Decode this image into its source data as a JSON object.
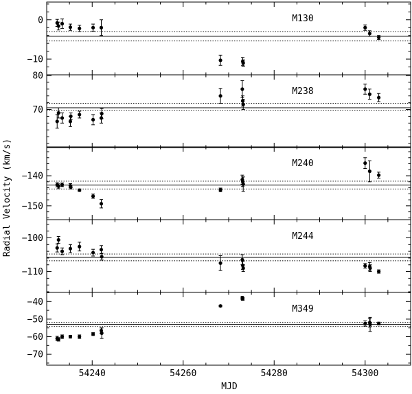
{
  "chart_data": {
    "type": "scatter",
    "xlabel": "MJD",
    "ylabel": "Radial Velocity (km/s)",
    "xlim": [
      54230,
      54310
    ],
    "x_ticks": [
      54240,
      54260,
      54280,
      54300
    ],
    "x_tick_labels": [
      "54240",
      "54260",
      "54280",
      "54300"
    ],
    "panels": [
      {
        "label": "M130",
        "ylim": [
          -14,
          4.5
        ],
        "y_ticks": [
          0,
          -10
        ],
        "y_tick_labels": [
          "0",
          "−10"
        ],
        "mean": -4.2,
        "dotted": [
          -3.0,
          -5.4
        ],
        "points": [
          {
            "x": 54232.3,
            "y": -0.8,
            "err": 0.9
          },
          {
            "x": 54232.6,
            "y": -1.6,
            "err": 1.0
          },
          {
            "x": 54233.4,
            "y": -1.0,
            "err": 1.2
          },
          {
            "x": 54235.2,
            "y": -1.9,
            "err": 0.8
          },
          {
            "x": 54237.2,
            "y": -2.2,
            "err": 0.8
          },
          {
            "x": 54240.2,
            "y": -2.0,
            "err": 0.9
          },
          {
            "x": 54242.0,
            "y": -2.0,
            "err": 2.0
          },
          {
            "x": 54268.2,
            "y": -10.3,
            "err": 1.3
          },
          {
            "x": 54273.1,
            "y": -10.6,
            "err": 1.0
          },
          {
            "x": 54273.2,
            "y": -11.0,
            "err": 0.8
          },
          {
            "x": 54300.0,
            "y": -2.0,
            "err": 0.7
          },
          {
            "x": 54301.0,
            "y": -3.5,
            "err": 0.7
          },
          {
            "x": 54303.0,
            "y": -4.5,
            "err": 0.5
          }
        ]
      },
      {
        "label": "M238",
        "ylim": [
          58.8,
          80.2
        ],
        "y_ticks": [
          80,
          70
        ],
        "y_tick_labels": [
          "80",
          "70"
        ],
        "mean": 70.5,
        "dotted": [
          71.8,
          69.8
        ],
        "points": [
          {
            "x": 54232.3,
            "y": 66.5,
            "err": 2.0
          },
          {
            "x": 54232.6,
            "y": 69.0,
            "err": 1.5
          },
          {
            "x": 54233.4,
            "y": 67.5,
            "err": 1.5
          },
          {
            "x": 54235.2,
            "y": 66.5,
            "err": 1.5
          },
          {
            "x": 54235.3,
            "y": 68.0,
            "err": 1.0
          },
          {
            "x": 54237.2,
            "y": 68.5,
            "err": 1.0
          },
          {
            "x": 54240.2,
            "y": 67.0,
            "err": 1.5
          },
          {
            "x": 54242.0,
            "y": 67.5,
            "err": 1.5
          },
          {
            "x": 54242.1,
            "y": 68.8,
            "err": 1.5
          },
          {
            "x": 54268.2,
            "y": 74.0,
            "err": 2.2
          },
          {
            "x": 54273.0,
            "y": 76.0,
            "err": 2.5
          },
          {
            "x": 54273.1,
            "y": 72.5,
            "err": 1.5
          },
          {
            "x": 54273.2,
            "y": 71.5,
            "err": 1.5
          },
          {
            "x": 54300.0,
            "y": 76.0,
            "err": 1.5
          },
          {
            "x": 54301.0,
            "y": 74.5,
            "err": 1.5
          },
          {
            "x": 54303.0,
            "y": 73.5,
            "err": 1.2
          }
        ]
      },
      {
        "label": "M240",
        "ylim": [
          -154.6,
          -130.4
        ],
        "y_ticks": [
          -140,
          -150
        ],
        "y_tick_labels": [
          "−140",
          "−150"
        ],
        "mean": -143.1,
        "dotted": [
          -141.8,
          -144.4
        ],
        "points": [
          {
            "x": 54232.3,
            "y": -143.0,
            "err": 0.7
          },
          {
            "x": 54232.6,
            "y": -143.5,
            "err": 0.8
          },
          {
            "x": 54233.4,
            "y": -143.0,
            "err": 0.6
          },
          {
            "x": 54235.2,
            "y": -143.3,
            "err": 0.7
          },
          {
            "x": 54235.3,
            "y": -143.8,
            "err": 0.6
          },
          {
            "x": 54237.2,
            "y": -144.8,
            "err": 0.4
          },
          {
            "x": 54240.2,
            "y": -146.8,
            "err": 0.7
          },
          {
            "x": 54242.0,
            "y": -149.3,
            "err": 1.4
          },
          {
            "x": 54268.2,
            "y": -144.7,
            "err": 0.6
          },
          {
            "x": 54273.0,
            "y": -141.3,
            "err": 1.5
          },
          {
            "x": 54273.1,
            "y": -142.0,
            "err": 1.6
          },
          {
            "x": 54273.2,
            "y": -142.8,
            "err": 2.4
          },
          {
            "x": 54300.0,
            "y": -135.8,
            "err": 1.8
          },
          {
            "x": 54301.0,
            "y": -138.5,
            "err": 3.5
          },
          {
            "x": 54303.0,
            "y": -139.8,
            "err": 1.0
          }
        ]
      },
      {
        "label": "M244",
        "ylim": [
          -116.2,
          -94.6
        ],
        "y_ticks": [
          -100,
          -110
        ],
        "y_tick_labels": [
          "−100",
          "−110"
        ],
        "mean": -105.8,
        "dotted": [
          -104.8,
          -106.8
        ],
        "points": [
          {
            "x": 54232.3,
            "y": -103.0,
            "err": 1.2
          },
          {
            "x": 54232.6,
            "y": -100.6,
            "err": 1.0
          },
          {
            "x": 54233.4,
            "y": -104.0,
            "err": 1.0
          },
          {
            "x": 54235.2,
            "y": -103.2,
            "err": 1.2
          },
          {
            "x": 54237.2,
            "y": -102.6,
            "err": 1.3
          },
          {
            "x": 54240.2,
            "y": -104.4,
            "err": 1.0
          },
          {
            "x": 54242.0,
            "y": -103.5,
            "err": 1.2
          },
          {
            "x": 54242.1,
            "y": -105.6,
            "err": 1.0
          },
          {
            "x": 54268.2,
            "y": -107.5,
            "err": 2.2
          },
          {
            "x": 54273.0,
            "y": -106.5,
            "err": 1.5
          },
          {
            "x": 54273.1,
            "y": -108.2,
            "err": 1.2
          },
          {
            "x": 54273.2,
            "y": -109.0,
            "err": 1.0
          },
          {
            "x": 54300.0,
            "y": -108.3,
            "err": 0.7
          },
          {
            "x": 54301.0,
            "y": -108.5,
            "err": 1.2
          },
          {
            "x": 54301.1,
            "y": -109.0,
            "err": 1.0
          },
          {
            "x": 54303.0,
            "y": -110.0,
            "err": 0.5
          }
        ]
      },
      {
        "label": "M349",
        "ylim": [
          -76.2,
          -34.8
        ],
        "y_ticks": [
          -40,
          -50,
          -60,
          -70
        ],
        "y_tick_labels": [
          "−40",
          "−50",
          "−60",
          "−70"
        ],
        "mean": -53.0,
        "dotted": [
          -51.8,
          -54.2
        ],
        "points": [
          {
            "x": 54232.3,
            "y": -61.0,
            "err": 1.2
          },
          {
            "x": 54232.6,
            "y": -61.5,
            "err": 1.0
          },
          {
            "x": 54233.4,
            "y": -60.0,
            "err": 1.0
          },
          {
            "x": 54235.2,
            "y": -60.0,
            "err": 0.8
          },
          {
            "x": 54237.2,
            "y": -60.0,
            "err": 1.0
          },
          {
            "x": 54240.2,
            "y": -58.5,
            "err": 0.8
          },
          {
            "x": 54242.0,
            "y": -56.5,
            "err": 1.5
          },
          {
            "x": 54242.1,
            "y": -58.0,
            "err": 3.0
          },
          {
            "x": 54268.2,
            "y": -42.5,
            "err": 0.5
          },
          {
            "x": 54273.0,
            "y": -38.0,
            "err": 1.0
          },
          {
            "x": 54273.1,
            "y": -38.5,
            "err": 0.8
          },
          {
            "x": 54300.0,
            "y": -52.5,
            "err": 1.5
          },
          {
            "x": 54301.0,
            "y": -52.0,
            "err": 2.5
          },
          {
            "x": 54301.1,
            "y": -53.0,
            "err": 4.0
          },
          {
            "x": 54303.0,
            "y": -52.5,
            "err": 0.8
          }
        ]
      }
    ]
  }
}
